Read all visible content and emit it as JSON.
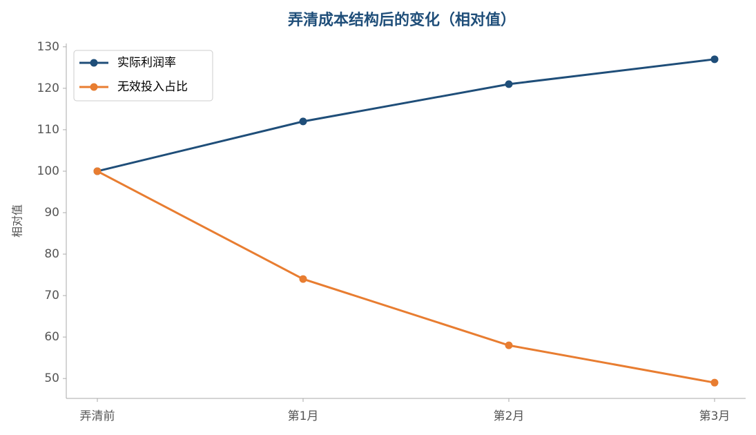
{
  "chart_data": {
    "type": "line",
    "title": "弄清成本结构后的变化（相对值）",
    "ylabel": "相对值",
    "categories": [
      "弄清前",
      "第1月",
      "第2月",
      "第3月"
    ],
    "series": [
      {
        "name": "实际利润率",
        "color": "#1f4e79",
        "values": [
          100,
          112,
          121,
          127
        ]
      },
      {
        "name": "无效投入占比",
        "color": "#e87d31",
        "values": [
          100,
          74,
          58,
          49
        ]
      }
    ],
    "ylim": [
      45.2,
      130.8
    ],
    "yticks": [
      50,
      60,
      70,
      80,
      90,
      100,
      110,
      120,
      130
    ],
    "legend": "upper-left"
  }
}
